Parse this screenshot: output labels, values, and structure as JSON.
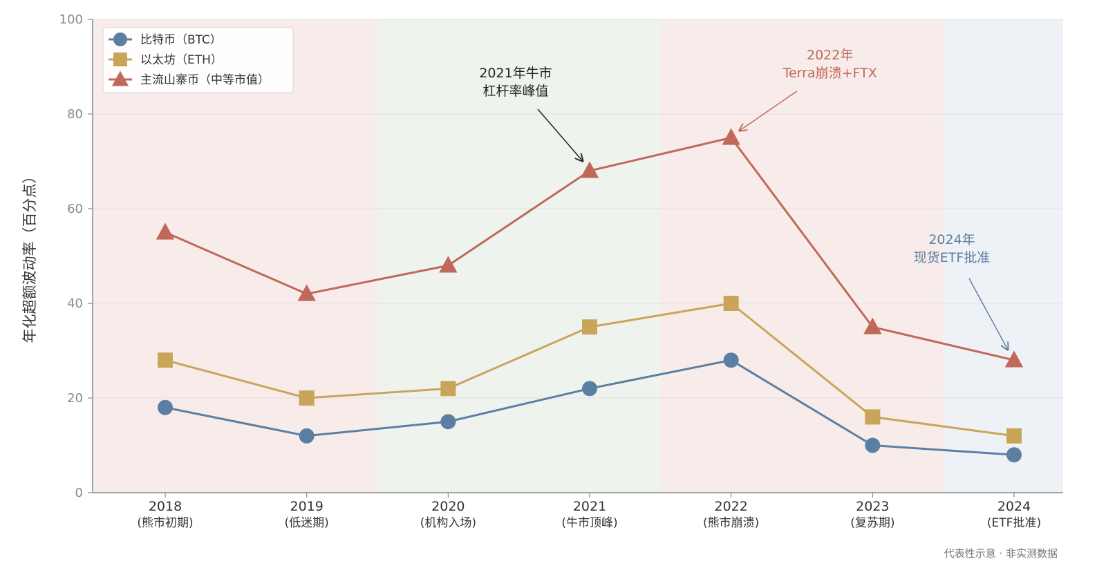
{
  "chart_data": {
    "type": "line",
    "ylabel": "年化超额波动率（百分点）",
    "xlabel": "",
    "title": "",
    "ylim": [
      0,
      100
    ],
    "yticks": [
      0,
      20,
      40,
      60,
      80,
      100
    ],
    "categories": [
      {
        "year": "2018",
        "sub": "(熊市初期)"
      },
      {
        "year": "2019",
        "sub": "(低迷期)"
      },
      {
        "year": "2020",
        "sub": "(机构入场)"
      },
      {
        "year": "2021",
        "sub": "(牛市顶峰)"
      },
      {
        "year": "2022",
        "sub": "(熊市崩溃)"
      },
      {
        "year": "2023",
        "sub": "(复苏期)"
      },
      {
        "year": "2024",
        "sub": "(ETF批准)"
      }
    ],
    "series": [
      {
        "name": "比特币（BTC）",
        "marker": "circle",
        "color": "#5b7fa3",
        "values": [
          18,
          12,
          15,
          22,
          28,
          10,
          8
        ]
      },
      {
        "name": "以太坊（ETH）",
        "marker": "square",
        "color": "#c9a55a",
        "values": [
          28,
          20,
          22,
          35,
          40,
          16,
          12
        ]
      },
      {
        "name": "主流山寨币（中等市值）",
        "marker": "triangle",
        "color": "#c0685a",
        "values": [
          55,
          42,
          48,
          68,
          75,
          35,
          28
        ]
      }
    ],
    "phases": [
      {
        "from": 0,
        "to": 1.5,
        "color": "#f8ecea"
      },
      {
        "from": 1.5,
        "to": 3.5,
        "color": "#eef3ee"
      },
      {
        "from": 3.5,
        "to": 5.5,
        "color": "#f8ecea"
      },
      {
        "from": 5.5,
        "to": 6.5,
        "color": "#eef2f6"
      }
    ],
    "annotations": [
      {
        "lines": [
          "2021年牛市",
          "杠杆率峰值"
        ],
        "color": "#222222",
        "target_index": 3,
        "target_value": 68
      },
      {
        "lines": [
          "2022年",
          "Terra崩溃+FTX"
        ],
        "color": "#c0685a",
        "target_index": 4,
        "target_value": 75
      },
      {
        "lines": [
          "2024年",
          "现货ETF批准"
        ],
        "color": "#5b7fa3",
        "target_index": 6,
        "target_value": 28
      }
    ],
    "legend_position": "top-left",
    "grid": true
  },
  "footnote": "代表性示意 · 非实测数据"
}
